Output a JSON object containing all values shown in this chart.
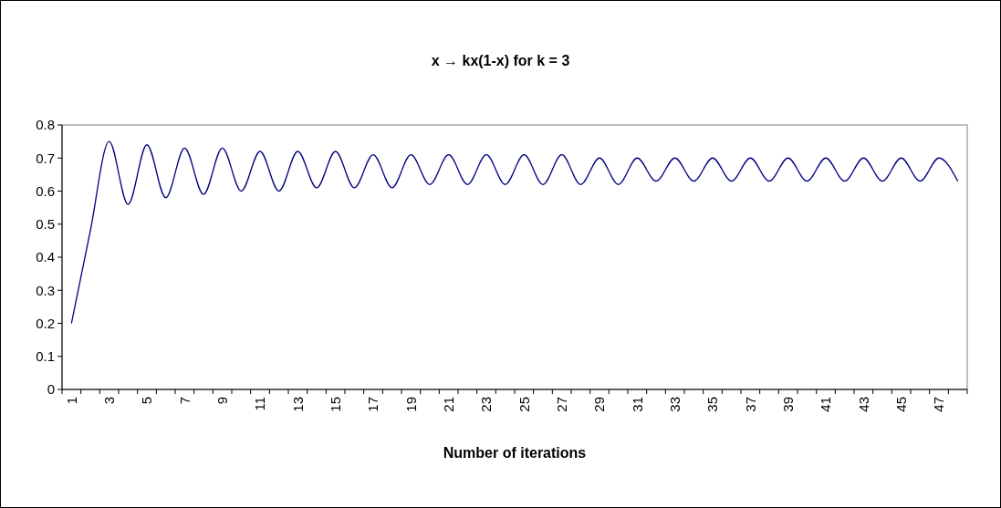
{
  "chart_data": {
    "type": "line",
    "title": "x → kx(1-x) for k = 3",
    "xlabel": "Number of iterations",
    "categories": [
      "1",
      null,
      "3",
      null,
      "5",
      null,
      "7",
      null,
      "9",
      null,
      "11",
      null,
      "13",
      null,
      "15",
      null,
      "17",
      null,
      "19",
      null,
      "21",
      null,
      "23",
      null,
      "25",
      null,
      "27",
      null,
      "29",
      null,
      "31",
      null,
      "33",
      null,
      "35",
      null,
      "37",
      null,
      "39",
      null,
      "41",
      null,
      "43",
      null,
      "45",
      null,
      "47",
      null
    ],
    "series": [
      {
        "color": "#000080",
        "values": [
          0.2,
          0.48,
          0.75,
          0.56,
          0.74,
          0.58,
          0.73,
          0.59,
          0.73,
          0.6,
          0.72,
          0.6,
          0.72,
          0.61,
          0.72,
          0.61,
          0.71,
          0.61,
          0.71,
          0.62,
          0.71,
          0.62,
          0.71,
          0.62,
          0.71,
          0.62,
          0.71,
          0.62,
          0.7,
          0.62,
          0.7,
          0.63,
          0.7,
          0.63,
          0.7,
          0.63,
          0.7,
          0.63,
          0.7,
          0.63,
          0.7,
          0.63,
          0.7,
          0.63,
          0.7,
          0.63,
          0.7,
          0.63
        ]
      }
    ],
    "ylim": [
      0,
      0.8
    ],
    "yticks": [
      {
        "value": 0,
        "label": "0"
      },
      0.1,
      0.2,
      0.3,
      0.4,
      0.5,
      0.6,
      0.7,
      0.8
    ],
    "grid": false,
    "marker": "none",
    "line_style": "solid"
  }
}
